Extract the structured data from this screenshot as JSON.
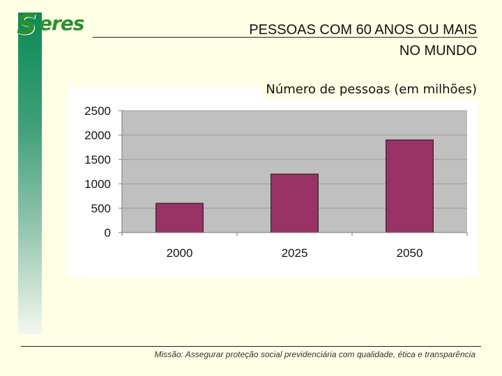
{
  "logo": {
    "initial": "S",
    "word": "eres"
  },
  "header": {
    "title_line1": "PESSOAS COM 60 ANOS OU MAIS",
    "title_line2": "NO MUNDO"
  },
  "chart_data": {
    "type": "bar",
    "title": "Número de pessoas (em milhões)",
    "categories": [
      "2000",
      "2025",
      "2050"
    ],
    "values": [
      600,
      1200,
      1900
    ],
    "xlabel": "",
    "ylabel": "",
    "ylim": [
      0,
      2500
    ],
    "yticks": [
      0,
      500,
      1000,
      1500,
      2000,
      2500
    ],
    "grid": true,
    "legend": "none",
    "bar_color": "#993366",
    "plot_bg": "#c0c0c0"
  },
  "footer": {
    "mission": "Missão: Assegurar proteção social previdenciária com qualidade, ética e transparência"
  }
}
